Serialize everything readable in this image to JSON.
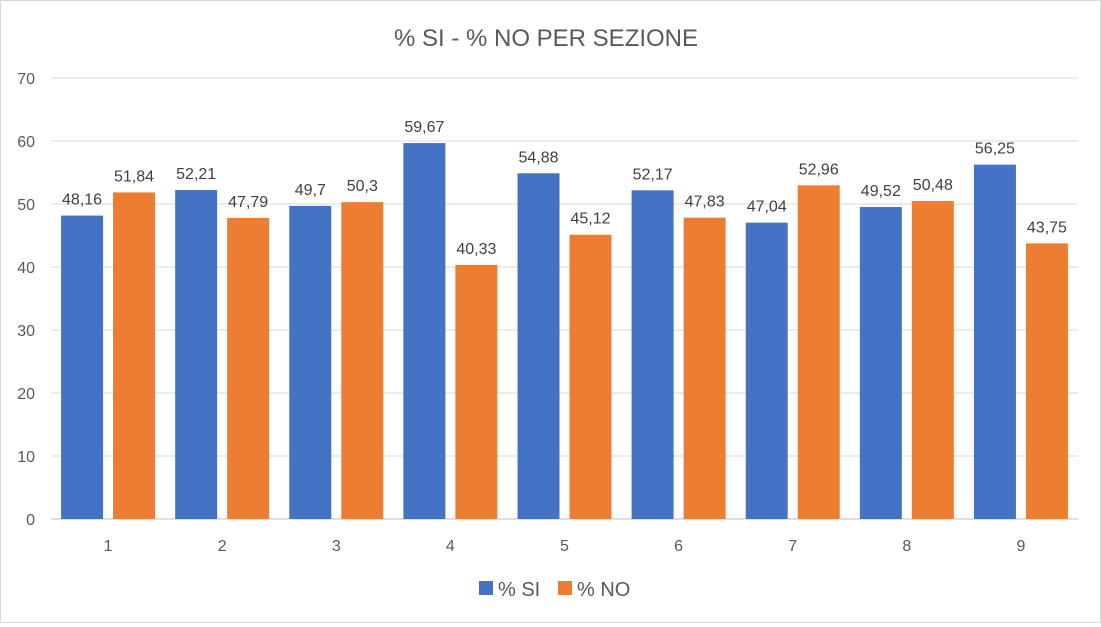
{
  "chart_data": {
    "type": "bar",
    "title": "% SI - % NO  PER SEZIONE",
    "categories": [
      "1",
      "2",
      "3",
      "4",
      "5",
      "6",
      "7",
      "8",
      "9"
    ],
    "series": [
      {
        "name": "% SI",
        "color": "#4472c4",
        "values": [
          48.16,
          52.21,
          49.7,
          59.67,
          54.88,
          52.17,
          47.04,
          49.52,
          56.25
        ],
        "labels": [
          "48,16",
          "52,21",
          "49,7",
          "59,67",
          "54,88",
          "52,17",
          "47,04",
          "49,52",
          "56,25"
        ]
      },
      {
        "name": "% NO",
        "color": "#ed7d31",
        "values": [
          51.84,
          47.79,
          50.3,
          40.33,
          45.12,
          47.83,
          52.96,
          50.48,
          43.75
        ],
        "labels": [
          "51,84",
          "47,79",
          "50,3",
          "40,33",
          "45,12",
          "47,83",
          "52,96",
          "50,48",
          "43,75"
        ]
      }
    ],
    "ylim": [
      0,
      70
    ],
    "yticks": [
      "0",
      "10",
      "20",
      "30",
      "40",
      "50",
      "60",
      "70"
    ],
    "xlabel": "",
    "ylabel": "",
    "grid": true,
    "legend": "bottom-center"
  }
}
